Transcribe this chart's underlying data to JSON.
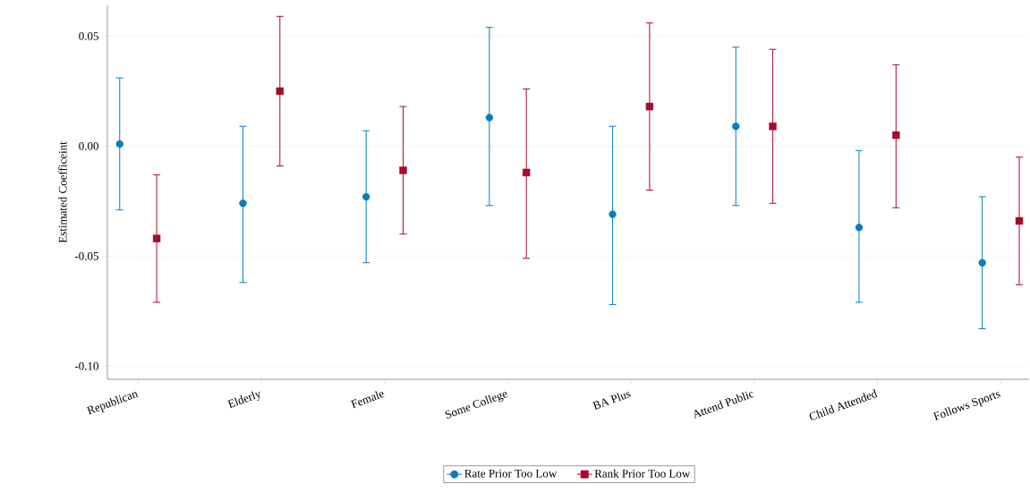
{
  "chart_data": {
    "type": "scatter",
    "ylabel": "Estimated Coefficeint",
    "categories": [
      "Republican",
      "Elderly",
      "Female",
      "Some College",
      "BA Plus",
      "Attend Public",
      "Child Attended",
      "Follows Sports"
    ],
    "series": [
      {
        "name": "Rate Prior Too Low",
        "color": "#0a7bbf",
        "marker": "circle",
        "values": [
          0.001,
          -0.026,
          -0.023,
          0.013,
          -0.031,
          0.009,
          -0.037,
          -0.053
        ],
        "errors": [
          [
            -0.029,
            0.031
          ],
          [
            -0.062,
            0.009
          ],
          [
            -0.053,
            0.007
          ],
          [
            -0.027,
            0.054
          ],
          [
            -0.072,
            0.009
          ],
          [
            -0.027,
            0.045
          ],
          [
            -0.071,
            -0.002
          ],
          [
            -0.083,
            -0.023
          ]
        ]
      },
      {
        "name": "Rank Prior Too Low",
        "color": "#a60a2e",
        "marker": "square",
        "values": [
          -0.042,
          0.025,
          -0.011,
          -0.012,
          0.018,
          0.009,
          0.005,
          -0.034
        ],
        "errors": [
          [
            -0.071,
            -0.013
          ],
          [
            -0.009,
            0.059
          ],
          [
            -0.04,
            0.018
          ],
          [
            -0.051,
            0.026
          ],
          [
            -0.02,
            0.056
          ],
          [
            -0.026,
            0.044
          ],
          [
            -0.028,
            0.037
          ],
          [
            -0.063,
            -0.005
          ]
        ]
      }
    ],
    "ylim": [
      -0.106,
      0.064
    ],
    "yticks": [
      {
        "value": -0.1,
        "label": "-0.10"
      },
      {
        "value": -0.05,
        "label": "-0.05"
      },
      {
        "value": 0,
        "label": "0.00"
      },
      {
        "value": 0.05,
        "label": "0.05"
      }
    ],
    "grid": "y",
    "legend": "bottom"
  }
}
